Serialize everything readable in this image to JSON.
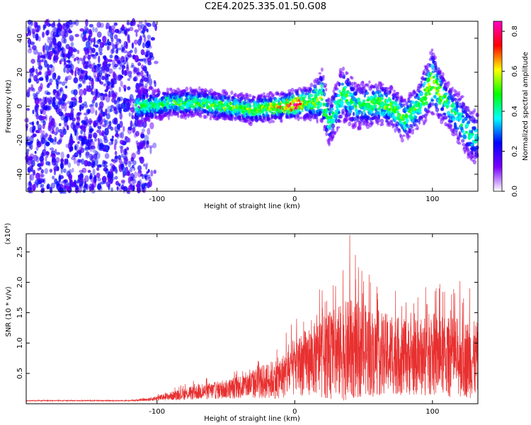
{
  "title": "C2E4.2025.335.01.50.G08",
  "chart_data": [
    {
      "type": "heatmap",
      "name": "spectrogram",
      "xlabel": "Height of straight line (km)",
      "ylabel": "Frequency (Hz)",
      "xlim": [
        -195,
        133
      ],
      "ylim": [
        -50,
        50
      ],
      "xticks": [
        -100,
        0,
        100
      ],
      "yticks": [
        -40,
        -20,
        0,
        20,
        40
      ],
      "colorbar": {
        "label": "Normalized spectral amplitude",
        "range": [
          0.0,
          0.85
        ],
        "ticks": [
          "0.0",
          "0.2",
          "0.4",
          "0.6",
          "0.8"
        ],
        "tick_values": [
          0.0,
          0.2,
          0.4,
          0.6,
          0.8
        ],
        "colors": [
          "#ffffff",
          "#7b00ff",
          "#0000ff",
          "#00ffff",
          "#00ff00",
          "#ffff00",
          "#ff0000",
          "#ff00c8"
        ]
      },
      "noise_region_end_km": -105,
      "ridge": [
        {
          "x": -110,
          "freq": 0,
          "width": 6,
          "amp": 0.35
        },
        {
          "x": -90,
          "freq": 2,
          "width": 5,
          "amp": 0.38
        },
        {
          "x": -70,
          "freq": 2,
          "width": 5,
          "amp": 0.4
        },
        {
          "x": -50,
          "freq": 0,
          "width": 5,
          "amp": 0.42
        },
        {
          "x": -30,
          "freq": -2,
          "width": 5,
          "amp": 0.45
        },
        {
          "x": -10,
          "freq": 0,
          "width": 5,
          "amp": 0.55
        },
        {
          "x": 0,
          "freq": 1,
          "width": 5,
          "amp": 0.8
        },
        {
          "x": 10,
          "freq": 2,
          "width": 6,
          "amp": 0.45
        },
        {
          "x": 20,
          "freq": 5,
          "width": 10,
          "amp": 0.45
        },
        {
          "x": 25,
          "freq": -10,
          "width": 8,
          "amp": 0.35
        },
        {
          "x": 35,
          "freq": 8,
          "width": 10,
          "amp": 0.4
        },
        {
          "x": 45,
          "freq": 0,
          "width": 8,
          "amp": 0.35
        },
        {
          "x": 60,
          "freq": 2,
          "width": 8,
          "amp": 0.4
        },
        {
          "x": 70,
          "freq": 0,
          "width": 7,
          "amp": 0.45
        },
        {
          "x": 80,
          "freq": -8,
          "width": 8,
          "amp": 0.4
        },
        {
          "x": 90,
          "freq": 0,
          "width": 8,
          "amp": 0.4
        },
        {
          "x": 100,
          "freq": 15,
          "width": 12,
          "amp": 0.5
        },
        {
          "x": 110,
          "freq": 2,
          "width": 8,
          "amp": 0.4
        },
        {
          "x": 120,
          "freq": -8,
          "width": 9,
          "amp": 0.35
        },
        {
          "x": 130,
          "freq": -18,
          "width": 10,
          "amp": 0.3
        }
      ]
    },
    {
      "type": "line",
      "name": "snr",
      "xlabel": "Height of straight line (km)",
      "ylabel": "SNR (10 * v/v)",
      "y_multiplier": "(x10⁴)",
      "xlim": [
        -195,
        133
      ],
      "ylim": [
        0,
        2.8
      ],
      "xticks": [
        -100,
        0,
        100
      ],
      "yticks": [
        "0.5",
        "1.0",
        "1.5",
        "2.0",
        "2.5"
      ],
      "ytick_values": [
        0.5,
        1.0,
        1.5,
        2.0,
        2.5
      ],
      "color": "#e83030",
      "envelope": {
        "x": [
          -195,
          -120,
          -105,
          -90,
          -70,
          -50,
          -30,
          -10,
          0,
          10,
          20,
          30,
          40,
          50,
          60,
          70,
          80,
          90,
          100,
          110,
          120,
          133
        ],
        "mean": [
          0.05,
          0.05,
          0.07,
          0.12,
          0.18,
          0.22,
          0.3,
          0.4,
          0.55,
          0.65,
          0.7,
          0.75,
          0.8,
          0.8,
          0.75,
          0.75,
          0.7,
          0.7,
          0.75,
          0.7,
          0.7,
          0.65
        ],
        "spread": [
          0.01,
          0.01,
          0.04,
          0.1,
          0.18,
          0.22,
          0.35,
          0.5,
          0.7,
          0.8,
          0.95,
          1.1,
          1.2,
          1.1,
          1.0,
          0.95,
          0.9,
          0.9,
          1.0,
          0.95,
          0.95,
          0.9
        ]
      },
      "peaks": [
        {
          "x": 40,
          "y": 2.78
        },
        {
          "x": 44,
          "y": 2.45
        },
        {
          "x": 35,
          "y": 2.2
        },
        {
          "x": 55,
          "y": 2.0
        },
        {
          "x": 28,
          "y": 1.95
        },
        {
          "x": 95,
          "y": 1.92
        },
        {
          "x": 105,
          "y": 1.9
        },
        {
          "x": 120,
          "y": 2.02
        },
        {
          "x": 127,
          "y": 1.9
        }
      ]
    }
  ]
}
